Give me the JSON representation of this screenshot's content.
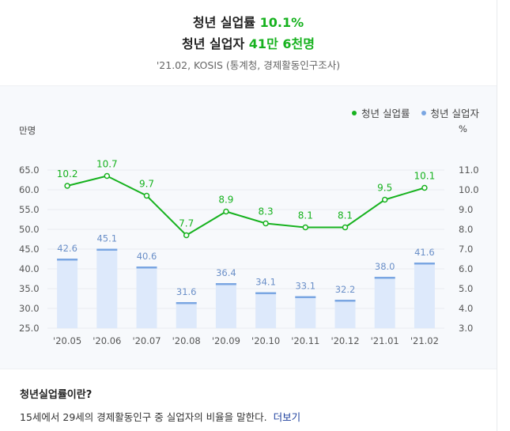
{
  "header": {
    "title1_prefix": "청년 실업률 ",
    "title1_value": "10.1%",
    "title2_prefix": "청년 실업자 ",
    "title2_value": "41만 6천명",
    "source": "'21.02, KOSIS (통계청, 경제활동인구조사)"
  },
  "colors": {
    "accent": "#17b21f",
    "bar_fill": "#dde9fb",
    "bar_top": "#7aa6e2",
    "bar_label": "#6a8fc8"
  },
  "chart_data": {
    "type": "bar+line",
    "categories": [
      "'20.05",
      "'20.06",
      "'20.07",
      "'20.08",
      "'20.09",
      "'20.10",
      "'20.11",
      "'20.12",
      "'21.01",
      "'21.02"
    ],
    "series": [
      {
        "name": "청년 실업률",
        "type": "line",
        "axis": "right",
        "values": [
          10.2,
          10.7,
          9.7,
          7.7,
          8.9,
          8.3,
          8.1,
          8.1,
          9.5,
          10.1
        ]
      },
      {
        "name": "청년 실업자",
        "type": "bar",
        "axis": "left",
        "values": [
          42.6,
          45.1,
          40.6,
          31.6,
          36.4,
          34.1,
          33.1,
          32.2,
          38.0,
          41.6
        ]
      }
    ],
    "left_axis": {
      "label": "만명",
      "ticks": [
        "65.0",
        "60.0",
        "55.0",
        "50.0",
        "45.0",
        "40.0",
        "35.0",
        "30.0",
        "25.0"
      ],
      "ylim": [
        25,
        65
      ]
    },
    "right_axis": {
      "label": "%",
      "ticks": [
        "11.0",
        "10.0",
        "9.0",
        "8.0",
        "7.0",
        "6.0",
        "5.0",
        "4.0",
        "3.0"
      ],
      "ylim": [
        3,
        11
      ]
    },
    "legend_position": "top-right",
    "grid": true
  },
  "info": {
    "title": "청년실업률이란?",
    "desc": "15세에서 29세의 경제활동인구 중 실업자의 비율을 말한다.",
    "more": "더보기"
  }
}
